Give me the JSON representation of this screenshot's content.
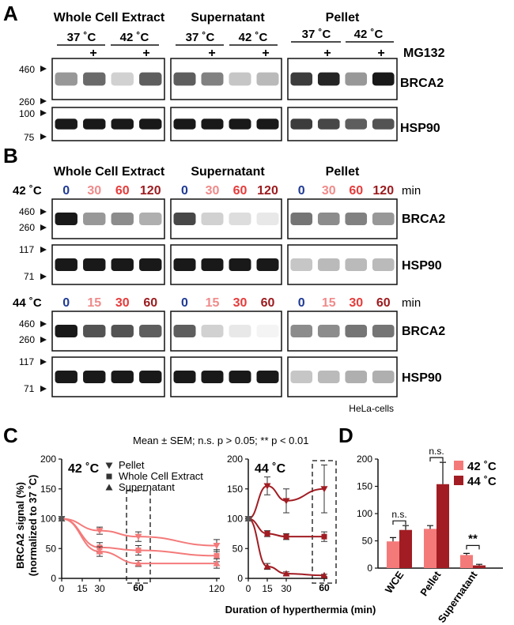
{
  "colors": {
    "t0": "#1f3a93",
    "t1": "#f08a8a",
    "t2": "#e63b3b",
    "t3": "#9b1c20",
    "c42": "#f47a7a",
    "c44": "#a11d23",
    "black": "#111111"
  },
  "panelA": {
    "letter": "A",
    "groups": [
      "Whole Cell Extract",
      "Supernatant",
      "Pellet"
    ],
    "temps": [
      "37 ˚C",
      "42 ˚C"
    ],
    "plus": "+",
    "treatment": "MG132",
    "proteins": [
      "BRCA2",
      "HSP90"
    ],
    "markers_top": [
      "460",
      "260"
    ],
    "markers_bottom": [
      "100",
      "75"
    ],
    "band_intensity": {
      "BRCA2": [
        [
          0.45,
          0.65,
          0.2,
          0.7
        ],
        [
          0.7,
          0.55,
          0.25,
          0.3
        ],
        [
          0.85,
          0.95,
          0.45,
          1.0
        ]
      ],
      "HSP90": [
        [
          1,
          1,
          1,
          1
        ],
        [
          1,
          1,
          1,
          1
        ],
        [
          0.85,
          0.8,
          0.7,
          0.75
        ]
      ]
    }
  },
  "panelB": {
    "letter": "B",
    "groups": [
      "Whole Cell Extract",
      "Supernatant",
      "Pellet"
    ],
    "unit": "min",
    "proteins": [
      "BRCA2",
      "HSP90"
    ],
    "rows": [
      {
        "temp": "42 ˚C",
        "times": [
          "0",
          "30",
          "60",
          "120"
        ],
        "markers_top": [
          "460",
          "260"
        ],
        "markers_bottom": [
          "117",
          "71"
        ],
        "band_intensity": {
          "BRCA2": [
            [
              1,
              0.45,
              0.5,
              0.35
            ],
            [
              0.8,
              0.2,
              0.15,
              0.1
            ],
            [
              0.6,
              0.5,
              0.55,
              0.45
            ]
          ],
          "HSP90": [
            [
              1,
              1,
              1,
              1
            ],
            [
              1,
              1,
              1,
              1
            ],
            [
              0.25,
              0.3,
              0.3,
              0.3
            ]
          ]
        }
      },
      {
        "temp": "44 ˚C",
        "times": [
          "0",
          "15",
          "30",
          "60"
        ],
        "markers_top": [
          "460",
          "260"
        ],
        "markers_bottom": [
          "117",
          "71"
        ],
        "band_intensity": {
          "BRCA2": [
            [
              1,
              0.75,
              0.75,
              0.7
            ],
            [
              0.7,
              0.2,
              0.1,
              0.05
            ],
            [
              0.5,
              0.5,
              0.6,
              0.6
            ]
          ],
          "HSP90": [
            [
              1,
              1,
              1,
              1
            ],
            [
              1,
              1,
              1,
              1
            ],
            [
              0.25,
              0.3,
              0.35,
              0.35
            ]
          ]
        }
      }
    ],
    "cells": "HeLa-cells"
  },
  "panelC": {
    "letter": "C",
    "note": "Mean ± SEM; n.s. p > 0.05; ** p < 0.01",
    "ylabel1": "BRCA2 signal (%)",
    "ylabel2": "(normalized to 37 ˚C)",
    "xlabel": "Duration of hyperthermia (min)",
    "chart_data": [
      {
        "type": "line",
        "title": "42 ˚C",
        "x": [
          0,
          30,
          60,
          120
        ],
        "xticks": [
          0,
          15,
          30,
          60,
          120
        ],
        "yticks": [
          0,
          50,
          100,
          150,
          200
        ],
        "ylim": [
          0,
          200
        ],
        "legend": "top",
        "highlight": "60",
        "series": [
          {
            "name": "Pellet",
            "marker": "triangle-down",
            "values": [
              100,
              80,
              70,
              55
            ],
            "err": [
              0,
              6,
              8,
              10
            ]
          },
          {
            "name": "Whole Cell Extract",
            "marker": "square",
            "values": [
              100,
              52,
              47,
              38
            ],
            "err": [
              0,
              8,
              8,
              10
            ]
          },
          {
            "name": "Supernatant",
            "marker": "triangle-up",
            "values": [
              100,
              45,
              25,
              25
            ],
            "err": [
              0,
              8,
              5,
              8
            ]
          }
        ]
      },
      {
        "type": "line",
        "title": "44 ˚C",
        "x": [
          0,
          15,
          30,
          60
        ],
        "xticks": [
          0,
          15,
          30,
          60
        ],
        "yticks": [
          0,
          50,
          100,
          150,
          200
        ],
        "ylim": [
          0,
          200
        ],
        "highlight": "60",
        "series": [
          {
            "name": "Pellet",
            "marker": "triangle-down",
            "values": [
              100,
              155,
              130,
              150
            ],
            "err": [
              0,
              15,
              20,
              40
            ]
          },
          {
            "name": "Whole Cell Extract",
            "marker": "square",
            "values": [
              100,
              75,
              70,
              70
            ],
            "err": [
              0,
              5,
              5,
              8
            ]
          },
          {
            "name": "Supernatant",
            "marker": "triangle-up",
            "values": [
              100,
              20,
              8,
              5
            ],
            "err": [
              0,
              5,
              3,
              2
            ]
          }
        ]
      }
    ]
  },
  "panelD": {
    "letter": "D",
    "chart_data": {
      "type": "bar",
      "categories": [
        "WCE",
        "Pellet",
        "Supernatant"
      ],
      "series": [
        {
          "name": "42 ˚C",
          "values": [
            49,
            72,
            24
          ],
          "err": [
            7,
            6,
            3
          ]
        },
        {
          "name": "44 ˚C",
          "values": [
            70,
            154,
            5
          ],
          "err": [
            8,
            40,
            2
          ]
        }
      ],
      "yticks": [
        0,
        50,
        100,
        150,
        200
      ],
      "ylim": [
        0,
        200
      ],
      "significance": [
        "n.s.",
        "n.s.",
        "**"
      ]
    }
  }
}
